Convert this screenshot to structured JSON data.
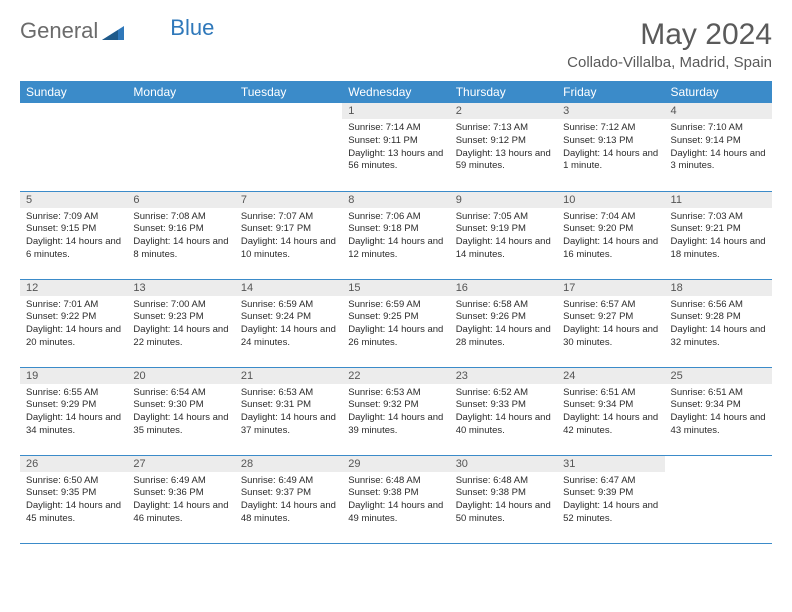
{
  "logo": {
    "text1": "General",
    "text2": "Blue"
  },
  "title": "May 2024",
  "location": "Collado-Villalba, Madrid, Spain",
  "colors": {
    "header_bg": "#3b8bc9",
    "header_text": "#ffffff",
    "daynum_bg": "#ececec",
    "border": "#3b8bc9",
    "logo_gray": "#6b6b6b",
    "logo_blue": "#2f78ba"
  },
  "weekdays": [
    "Sunday",
    "Monday",
    "Tuesday",
    "Wednesday",
    "Thursday",
    "Friday",
    "Saturday"
  ],
  "weeks": [
    [
      {
        "n": "",
        "t": ""
      },
      {
        "n": "",
        "t": ""
      },
      {
        "n": "",
        "t": ""
      },
      {
        "n": "1",
        "t": "Sunrise: 7:14 AM\nSunset: 9:11 PM\nDaylight: 13 hours and 56 minutes."
      },
      {
        "n": "2",
        "t": "Sunrise: 7:13 AM\nSunset: 9:12 PM\nDaylight: 13 hours and 59 minutes."
      },
      {
        "n": "3",
        "t": "Sunrise: 7:12 AM\nSunset: 9:13 PM\nDaylight: 14 hours and 1 minute."
      },
      {
        "n": "4",
        "t": "Sunrise: 7:10 AM\nSunset: 9:14 PM\nDaylight: 14 hours and 3 minutes."
      }
    ],
    [
      {
        "n": "5",
        "t": "Sunrise: 7:09 AM\nSunset: 9:15 PM\nDaylight: 14 hours and 6 minutes."
      },
      {
        "n": "6",
        "t": "Sunrise: 7:08 AM\nSunset: 9:16 PM\nDaylight: 14 hours and 8 minutes."
      },
      {
        "n": "7",
        "t": "Sunrise: 7:07 AM\nSunset: 9:17 PM\nDaylight: 14 hours and 10 minutes."
      },
      {
        "n": "8",
        "t": "Sunrise: 7:06 AM\nSunset: 9:18 PM\nDaylight: 14 hours and 12 minutes."
      },
      {
        "n": "9",
        "t": "Sunrise: 7:05 AM\nSunset: 9:19 PM\nDaylight: 14 hours and 14 minutes."
      },
      {
        "n": "10",
        "t": "Sunrise: 7:04 AM\nSunset: 9:20 PM\nDaylight: 14 hours and 16 minutes."
      },
      {
        "n": "11",
        "t": "Sunrise: 7:03 AM\nSunset: 9:21 PM\nDaylight: 14 hours and 18 minutes."
      }
    ],
    [
      {
        "n": "12",
        "t": "Sunrise: 7:01 AM\nSunset: 9:22 PM\nDaylight: 14 hours and 20 minutes."
      },
      {
        "n": "13",
        "t": "Sunrise: 7:00 AM\nSunset: 9:23 PM\nDaylight: 14 hours and 22 minutes."
      },
      {
        "n": "14",
        "t": "Sunrise: 6:59 AM\nSunset: 9:24 PM\nDaylight: 14 hours and 24 minutes."
      },
      {
        "n": "15",
        "t": "Sunrise: 6:59 AM\nSunset: 9:25 PM\nDaylight: 14 hours and 26 minutes."
      },
      {
        "n": "16",
        "t": "Sunrise: 6:58 AM\nSunset: 9:26 PM\nDaylight: 14 hours and 28 minutes."
      },
      {
        "n": "17",
        "t": "Sunrise: 6:57 AM\nSunset: 9:27 PM\nDaylight: 14 hours and 30 minutes."
      },
      {
        "n": "18",
        "t": "Sunrise: 6:56 AM\nSunset: 9:28 PM\nDaylight: 14 hours and 32 minutes."
      }
    ],
    [
      {
        "n": "19",
        "t": "Sunrise: 6:55 AM\nSunset: 9:29 PM\nDaylight: 14 hours and 34 minutes."
      },
      {
        "n": "20",
        "t": "Sunrise: 6:54 AM\nSunset: 9:30 PM\nDaylight: 14 hours and 35 minutes."
      },
      {
        "n": "21",
        "t": "Sunrise: 6:53 AM\nSunset: 9:31 PM\nDaylight: 14 hours and 37 minutes."
      },
      {
        "n": "22",
        "t": "Sunrise: 6:53 AM\nSunset: 9:32 PM\nDaylight: 14 hours and 39 minutes."
      },
      {
        "n": "23",
        "t": "Sunrise: 6:52 AM\nSunset: 9:33 PM\nDaylight: 14 hours and 40 minutes."
      },
      {
        "n": "24",
        "t": "Sunrise: 6:51 AM\nSunset: 9:34 PM\nDaylight: 14 hours and 42 minutes."
      },
      {
        "n": "25",
        "t": "Sunrise: 6:51 AM\nSunset: 9:34 PM\nDaylight: 14 hours and 43 minutes."
      }
    ],
    [
      {
        "n": "26",
        "t": "Sunrise: 6:50 AM\nSunset: 9:35 PM\nDaylight: 14 hours and 45 minutes."
      },
      {
        "n": "27",
        "t": "Sunrise: 6:49 AM\nSunset: 9:36 PM\nDaylight: 14 hours and 46 minutes."
      },
      {
        "n": "28",
        "t": "Sunrise: 6:49 AM\nSunset: 9:37 PM\nDaylight: 14 hours and 48 minutes."
      },
      {
        "n": "29",
        "t": "Sunrise: 6:48 AM\nSunset: 9:38 PM\nDaylight: 14 hours and 49 minutes."
      },
      {
        "n": "30",
        "t": "Sunrise: 6:48 AM\nSunset: 9:38 PM\nDaylight: 14 hours and 50 minutes."
      },
      {
        "n": "31",
        "t": "Sunrise: 6:47 AM\nSunset: 9:39 PM\nDaylight: 14 hours and 52 minutes."
      },
      {
        "n": "",
        "t": ""
      }
    ]
  ]
}
